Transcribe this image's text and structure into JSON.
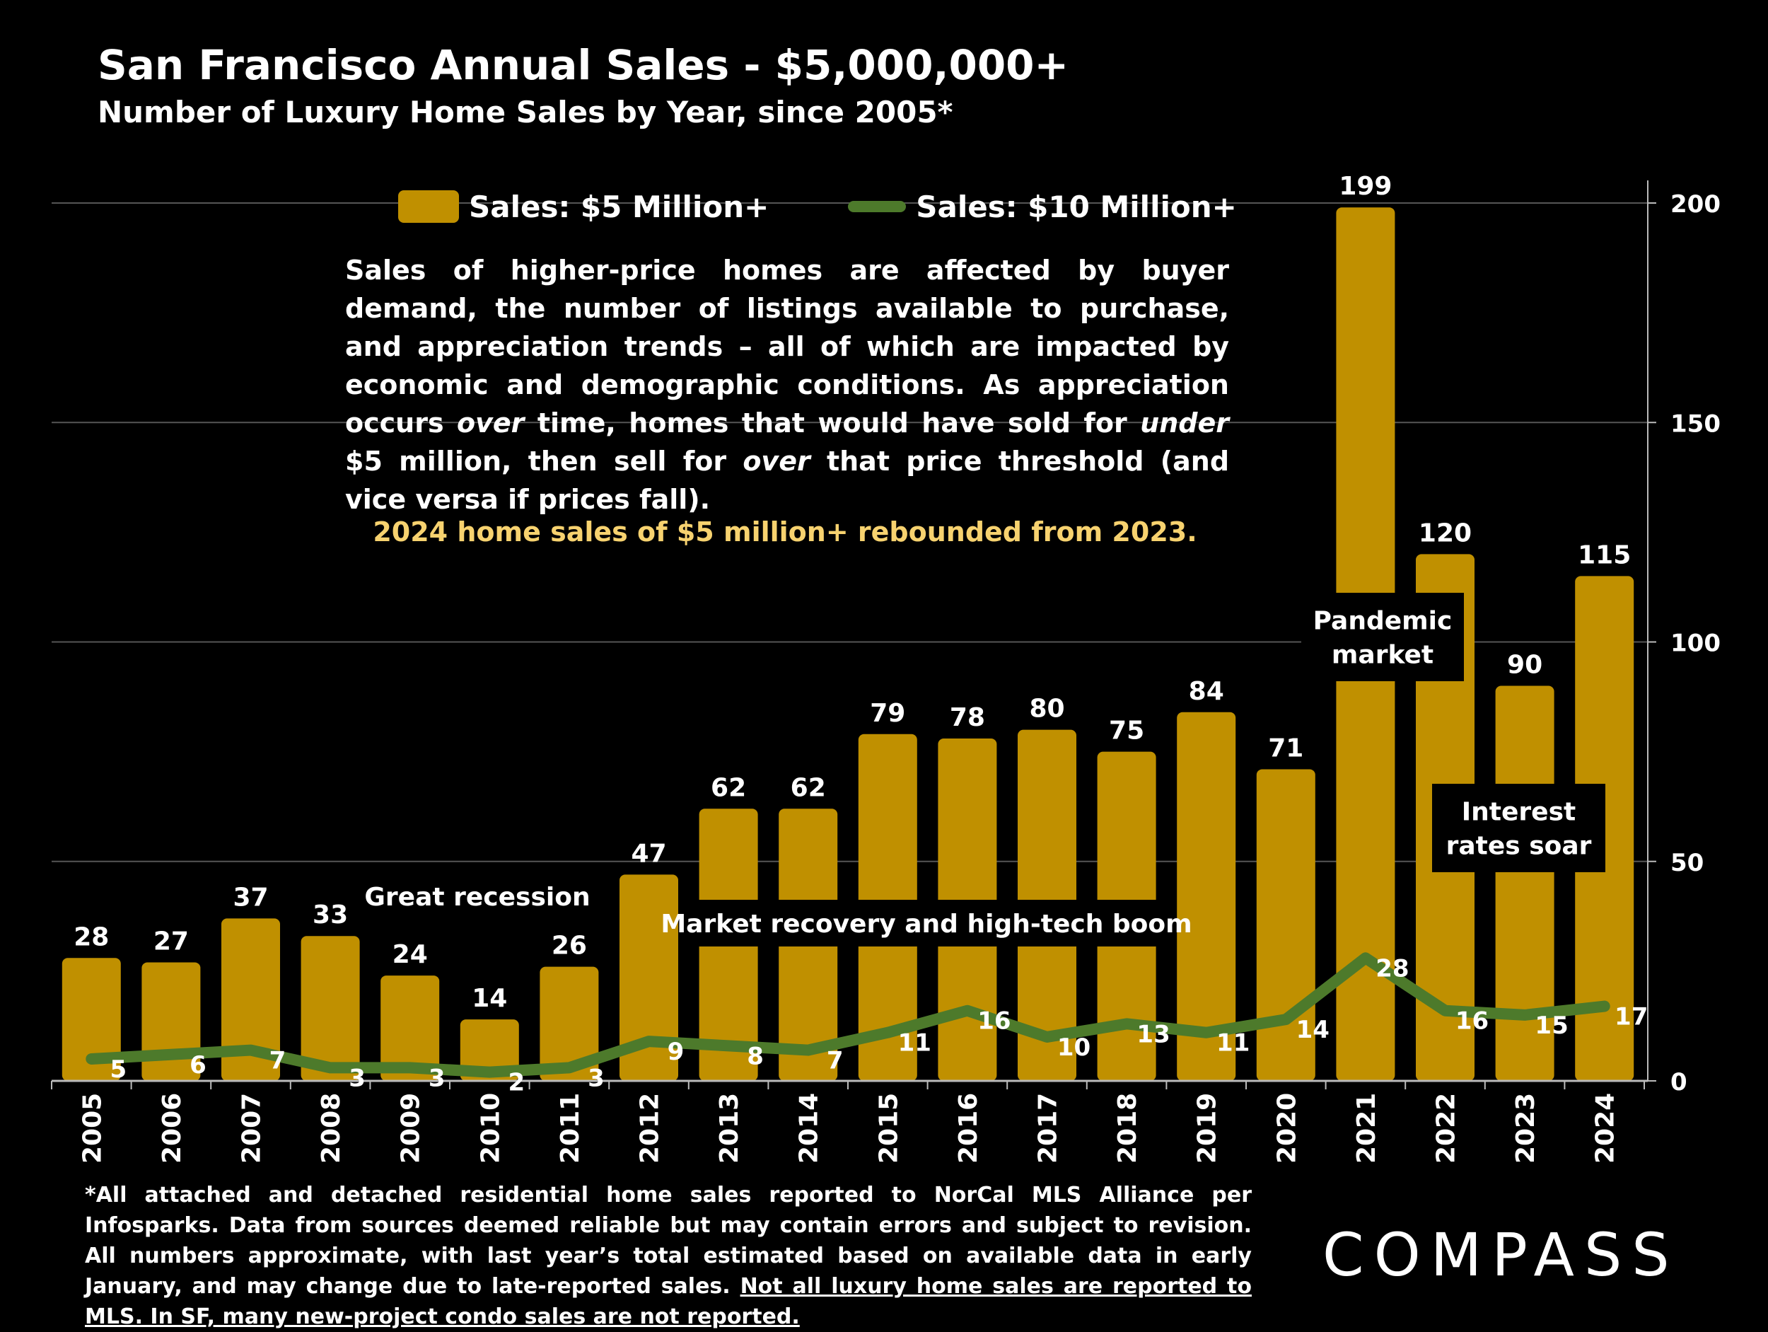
{
  "header": {
    "title": "San Francisco Annual Sales - $5,000,000+",
    "subtitle": "Number of Luxury Home Sales by Year, since 2005*"
  },
  "legend": {
    "bar_label": "Sales:  $5 Million+",
    "line_label": "Sales: $10 Million+"
  },
  "description": "Sales of higher-price homes are affected by buyer demand, the number of listings available to purchase, and appreciation trends – all of which are impacted by economic and demographic conditions. As appreciation occurs over time, homes that would have sold for under $5 million, then sell for over that price threshold (and vice versa if prices fall).",
  "description_italic_words": [
    "under",
    "over"
  ],
  "highlight": "2024 home sales of $5 million+ rebounded from 2023.",
  "annotations": [
    {
      "text": "Great recession"
    },
    {
      "text": "Market recovery and high-tech boom"
    },
    {
      "text": "Pandemic market"
    },
    {
      "text": "Interest rates soar"
    }
  ],
  "footnote": {
    "text": "*All attached and detached residential home sales reported to NorCal MLS Alliance per Infosparks. Data from sources deemed reliable but may contain errors and subject to revision. All numbers approximate, with last year’s total estimated based on available data in early January, and may change due to late-reported sales.",
    "underlined": "Not all luxury home sales are reported to MLS. In SF, many new-project condo sales are not reported."
  },
  "logo": "COMPASS",
  "colors": {
    "bar": "#c09000",
    "line": "#4d7a2b",
    "highlight": "#f7d26f",
    "grid": "#555555"
  },
  "chart_data": {
    "type": "bar",
    "categories": [
      "2005",
      "2006",
      "2007",
      "2008",
      "2009",
      "2010",
      "2011",
      "2012",
      "2013",
      "2014",
      "2015",
      "2016",
      "2017",
      "2018",
      "2019",
      "2020",
      "2021",
      "2022",
      "2023",
      "2024"
    ],
    "series": [
      {
        "name": "Sales:  $5 Million+",
        "type": "bar",
        "values": [
          28,
          27,
          37,
          33,
          24,
          14,
          26,
          47,
          62,
          62,
          79,
          78,
          80,
          75,
          84,
          71,
          199,
          120,
          90,
          115
        ]
      },
      {
        "name": "Sales: $10 Million+",
        "type": "line",
        "values": [
          5,
          6,
          7,
          3,
          3,
          2,
          3,
          9,
          8,
          7,
          11,
          16,
          10,
          13,
          11,
          14,
          28,
          16,
          15,
          17
        ]
      }
    ],
    "y_axis": {
      "position": "right",
      "ticks": [
        0,
        50,
        100,
        150,
        200
      ],
      "ylim": [
        0,
        200
      ]
    },
    "grid": true,
    "legend_position": "top"
  }
}
